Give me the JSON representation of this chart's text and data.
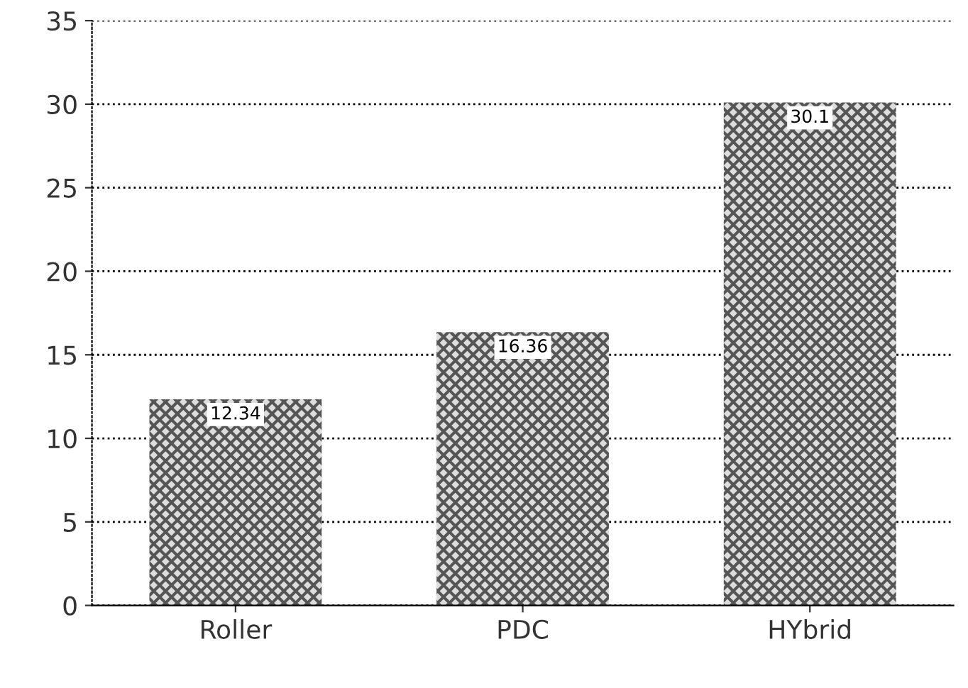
{
  "chart_data": {
    "type": "bar",
    "categories": [
      "Roller",
      "PDC",
      "HYbrid"
    ],
    "values": [
      12.34,
      16.36,
      30.1
    ],
    "color": "#555555",
    "ylim": [
      0,
      35
    ],
    "yticks": [
      0,
      5,
      10,
      15,
      20,
      25,
      30,
      35
    ],
    "grid": "y",
    "data_labels": true
  }
}
